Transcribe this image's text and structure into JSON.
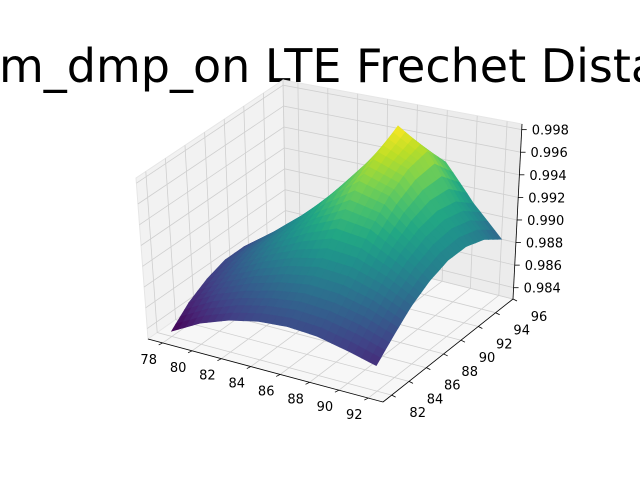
{
  "chart_data": {
    "type": "surface",
    "title": "rm_dmp_on LTE Frechet Dista",
    "x_ticks": [
      "78",
      "80",
      "82",
      "84",
      "86",
      "88",
      "90",
      "92"
    ],
    "y_ticks": [
      "82",
      "84",
      "86",
      "88",
      "90",
      "92",
      "94",
      "96"
    ],
    "z_ticks": [
      "0.984",
      "0.986",
      "0.988",
      "0.990",
      "0.992",
      "0.994",
      "0.996",
      "0.998"
    ],
    "xlim": [
      77,
      93
    ],
    "ylim": [
      81,
      96
    ],
    "zlim": [
      0.983,
      0.9985
    ],
    "colormap": "viridis",
    "grid": true,
    "x": [
      78,
      80,
      82,
      84,
      86,
      88,
      90,
      92
    ],
    "y": [
      82,
      84,
      86,
      88,
      90,
      92,
      94,
      96
    ],
    "z": [
      [
        0.9835,
        0.985,
        0.986,
        0.9866,
        0.9868,
        0.9866,
        0.986,
        0.9853
      ],
      [
        0.985,
        0.9865,
        0.9875,
        0.9882,
        0.9886,
        0.9884,
        0.9878,
        0.9868
      ],
      [
        0.986,
        0.9876,
        0.989,
        0.99,
        0.9906,
        0.9904,
        0.9895,
        0.9882
      ],
      [
        0.9866,
        0.9884,
        0.9902,
        0.9918,
        0.993,
        0.9926,
        0.991,
        0.9892
      ],
      [
        0.9866,
        0.9886,
        0.9908,
        0.9932,
        0.9952,
        0.9944,
        0.992,
        0.9898
      ],
      [
        0.9862,
        0.9882,
        0.9906,
        0.9936,
        0.9966,
        0.9956,
        0.9924,
        0.9898
      ],
      [
        0.9855,
        0.9876,
        0.99,
        0.9934,
        0.9978,
        0.996,
        0.992,
        0.9892
      ],
      [
        0.9846,
        0.9866,
        0.989,
        0.992,
        0.995,
        0.9938,
        0.9906,
        0.988
      ]
    ]
  }
}
